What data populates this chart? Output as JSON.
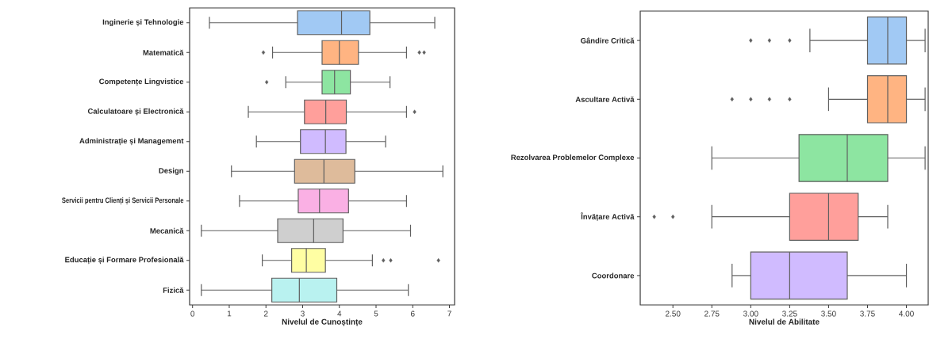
{
  "chart_data": [
    {
      "type": "box",
      "orientation": "horizontal",
      "marker": "diamond",
      "xlabel": "Nivelul de Cunoștințe",
      "categories": [
        "Inginerie și Tehnologie",
        "Matematică",
        "Competențe Lingvistice",
        "Calculatoare și Electronică",
        "Administrație și Management",
        "Design",
        "Servicii pentru Clienți și Servicii Personale",
        "Mecanică",
        "Educație și Formare Profesională",
        "Fizică"
      ],
      "colors": [
        "#a1c9f4",
        "#ffb482",
        "#8de5a1",
        "#ff9f9b",
        "#d0bbff",
        "#debb9b",
        "#fab0e4",
        "#cfcfcf",
        "#fffea3",
        "#b9f2f0"
      ],
      "boxes": [
        {
          "low": 0.46,
          "q1": 2.86,
          "median": 4.06,
          "q3": 4.83,
          "high": 6.6
        },
        {
          "low": 2.18,
          "q1": 3.53,
          "median": 4.0,
          "q3": 4.52,
          "high": 5.83,
          "outliers": [
            1.93,
            6.18,
            6.31
          ]
        },
        {
          "low": 2.54,
          "q1": 3.53,
          "median": 3.87,
          "q3": 4.3,
          "high": 5.38,
          "outliers": [
            2.02
          ]
        },
        {
          "low": 1.52,
          "q1": 3.05,
          "median": 3.63,
          "q3": 4.19,
          "high": 5.83,
          "outliers": [
            6.05
          ]
        },
        {
          "low": 1.74,
          "q1": 2.94,
          "median": 3.62,
          "q3": 4.18,
          "high": 5.26
        },
        {
          "low": 1.06,
          "q1": 2.78,
          "median": 3.58,
          "q3": 4.42,
          "high": 6.82
        },
        {
          "low": 1.28,
          "q1": 2.88,
          "median": 3.46,
          "q3": 4.25,
          "high": 5.83
        },
        {
          "low": 0.24,
          "q1": 2.32,
          "median": 3.3,
          "q3": 4.1,
          "high": 5.94
        },
        {
          "low": 1.9,
          "q1": 2.7,
          "median": 3.1,
          "q3": 3.62,
          "high": 4.9,
          "outliers": [
            5.2,
            5.4,
            6.7
          ]
        },
        {
          "low": 0.24,
          "q1": 2.16,
          "median": 2.91,
          "q3": 3.93,
          "high": 5.88
        }
      ],
      "xlim": [
        -0.08,
        7.14
      ],
      "xticks": [
        0,
        1,
        2,
        3,
        4,
        5,
        6,
        7
      ]
    },
    {
      "type": "box",
      "orientation": "horizontal",
      "marker": "diamond",
      "xlabel": "Nivelul de Abilitate",
      "categories": [
        "Gândire Critică",
        "Ascultare Activă",
        "Rezolvarea Problemelor Complexe",
        "Învățare Activă",
        "Coordonare"
      ],
      "colors": [
        "#a1c9f4",
        "#ffb482",
        "#8de5a1",
        "#ff9f9b",
        "#d0bbff"
      ],
      "boxes": [
        {
          "low": 3.38,
          "q1": 3.75,
          "median": 3.88,
          "q3": 4.0,
          "high": 4.12,
          "outliers": [
            3.0,
            3.12,
            3.25
          ]
        },
        {
          "low": 3.5,
          "q1": 3.75,
          "median": 3.88,
          "q3": 4.0,
          "high": 4.12,
          "outliers": [
            2.88,
            3.0,
            3.12,
            3.25
          ]
        },
        {
          "low": 2.75,
          "q1": 3.31,
          "median": 3.62,
          "q3": 3.88,
          "high": 4.12
        },
        {
          "low": 2.75,
          "q1": 3.25,
          "median": 3.5,
          "q3": 3.69,
          "high": 3.88,
          "outliers": [
            2.38,
            2.5
          ]
        },
        {
          "low": 2.88,
          "q1": 3.0,
          "median": 3.25,
          "q3": 3.62,
          "high": 4.0
        }
      ],
      "xlim": [
        2.29,
        4.14
      ],
      "xticks": [
        {
          "value": 2.5,
          "label": "2.50"
        },
        {
          "value": 2.75,
          "label": "2.75"
        },
        {
          "value": 3.0,
          "label": "3.00"
        },
        {
          "value": 3.25,
          "label": "3.25"
        },
        {
          "value": 3.5,
          "label": "3.50"
        },
        {
          "value": 3.75,
          "label": "3.75"
        },
        {
          "value": 4.0,
          "label": "4.00"
        }
      ]
    }
  ]
}
